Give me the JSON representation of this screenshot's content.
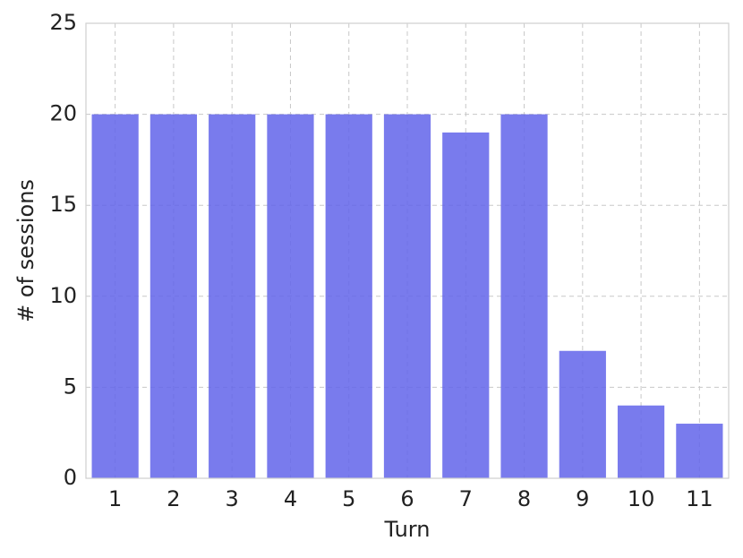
{
  "chart_data": {
    "type": "bar",
    "x_label": "Turn",
    "y_label": "# of sessions",
    "categories": [
      "1",
      "2",
      "3",
      "4",
      "5",
      "6",
      "7",
      "8",
      "9",
      "10",
      "11"
    ],
    "values": [
      20,
      20,
      20,
      20,
      20,
      20,
      19,
      20,
      7,
      4,
      3
    ],
    "color": "#6264ea",
    "ylim": [
      0,
      25
    ],
    "yticks": [
      0,
      5,
      10,
      15,
      20,
      25
    ],
    "grid": true
  }
}
